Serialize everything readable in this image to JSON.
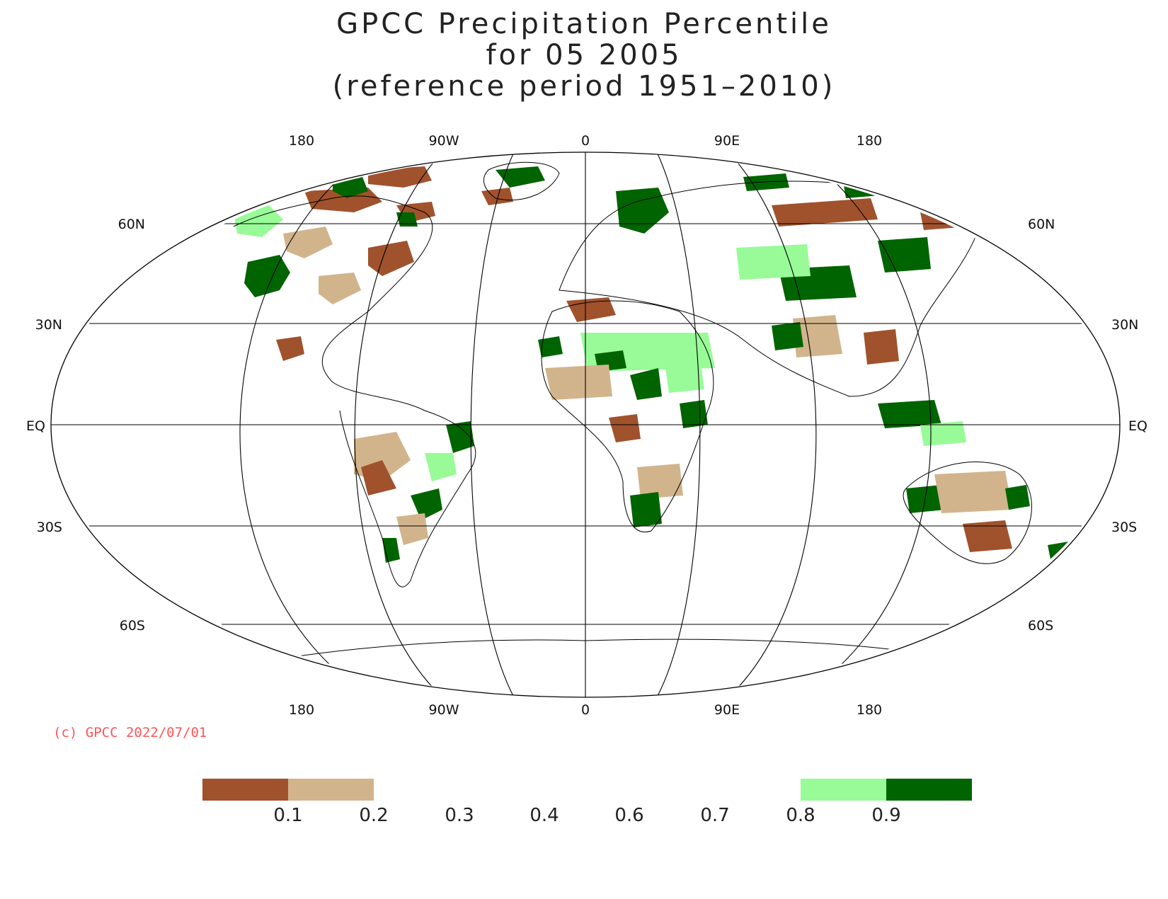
{
  "title": {
    "line1": "GPCC Precipitation Percentile",
    "line2": "for 05 2005",
    "line3": "(reference period 1951–2010)"
  },
  "map": {
    "projection": "Robinson",
    "longitude_labels": [
      "180",
      "90W",
      "0",
      "90E",
      "180"
    ],
    "latitude_labels_left": [
      "60N",
      "30N",
      "EQ",
      "30S",
      "60S"
    ],
    "latitude_labels_right": [
      "60N",
      "30N",
      "EQ",
      "30S",
      "60S"
    ]
  },
  "copyright": "(c) GPCC 2022/07/01",
  "legend": {
    "colors": {
      "p_lt_0_1": "#a0522d",
      "p_0_1_0_2": "#d2b48c",
      "p_0_8_0_9": "#98fb98",
      "p_gt_0_9": "#006400"
    },
    "ticks": [
      "0.1",
      "0.2",
      "0.3",
      "0.4",
      "0.6",
      "0.7",
      "0.8",
      "0.9"
    ]
  }
}
